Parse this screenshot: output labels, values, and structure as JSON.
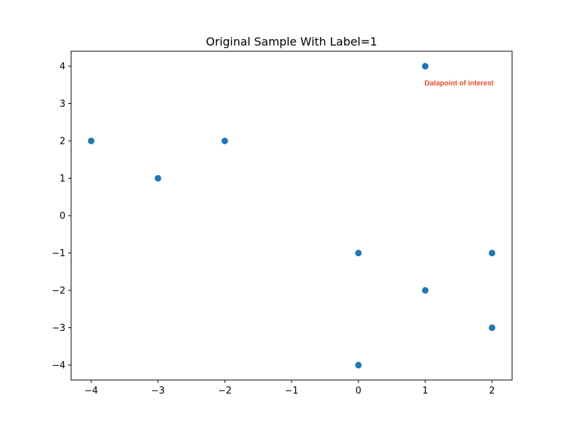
{
  "chart_data": {
    "type": "scatter",
    "title": "Original Sample With Label=1",
    "xlabel": "",
    "ylabel": "",
    "xlim": [
      -4.3,
      2.3
    ],
    "ylim": [
      -4.4,
      4.4
    ],
    "xticks": [
      -4,
      -3,
      -2,
      -1,
      0,
      1,
      2
    ],
    "yticks": [
      -4,
      -3,
      -2,
      -1,
      0,
      1,
      2,
      3,
      4
    ],
    "xtick_labels": [
      "−4",
      "−3",
      "−2",
      "−1",
      "0",
      "1",
      "2"
    ],
    "ytick_labels": [
      "−4",
      "−3",
      "−2",
      "−1",
      "0",
      "1",
      "2",
      "3",
      "4"
    ],
    "grid": false,
    "points": [
      {
        "x": -4,
        "y": 2
      },
      {
        "x": -3,
        "y": 1
      },
      {
        "x": -2,
        "y": 2
      },
      {
        "x": 0,
        "y": -1
      },
      {
        "x": 0,
        "y": -4
      },
      {
        "x": 1,
        "y": 4
      },
      {
        "x": 1,
        "y": -2
      },
      {
        "x": 2,
        "y": -1
      },
      {
        "x": 2,
        "y": -3
      }
    ],
    "marker_color": "#1f77b4",
    "annotations": [
      {
        "text": "Datapoint of interest",
        "x": 1.0,
        "y": 3.55,
        "color": "#e8492b"
      }
    ]
  }
}
